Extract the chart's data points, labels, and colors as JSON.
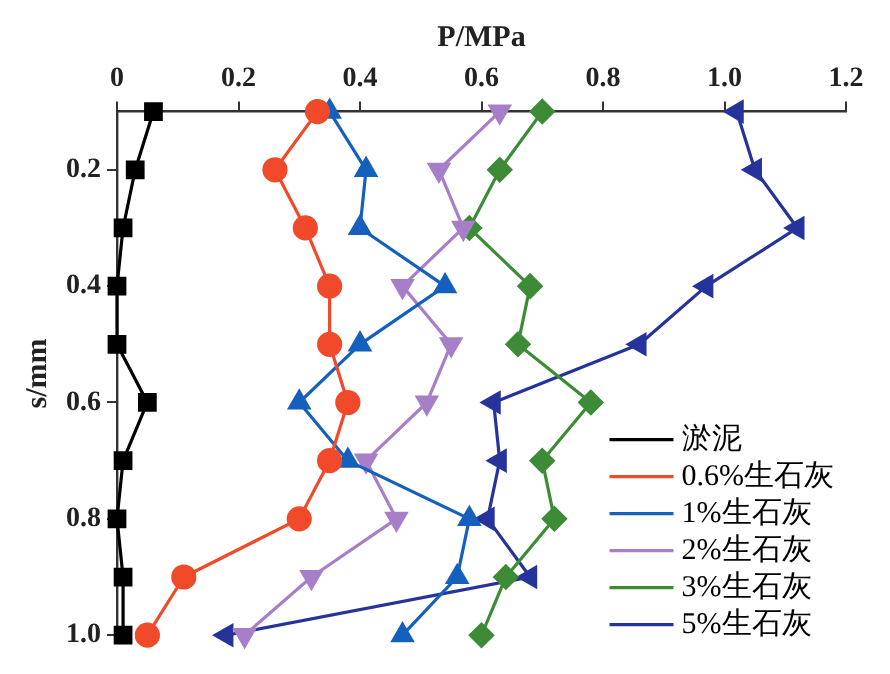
{
  "chart_data": {
    "type": "line",
    "xlabel": "P/MPa",
    "ylabel": "s/mm",
    "xlim": [
      0,
      1.2
    ],
    "xticks": [
      0,
      0.2,
      0.4,
      0.6,
      0.8,
      {
        "value": 1,
        "label": "1.0"
      },
      1.2
    ],
    "ylim": [
      1.0,
      0.1
    ],
    "yticks": [
      0.2,
      0.4,
      0.6,
      0.8,
      {
        "value": 1,
        "label": "1.0"
      }
    ],
    "grid": false,
    "legend": "bottom right",
    "series": [
      {
        "name": "淤泥",
        "color": "#000000",
        "marker": "square",
        "x": [
          0.06,
          0.03,
          0.01,
          0,
          0,
          0.05,
          0.01,
          0,
          0.01,
          0.01
        ],
        "values": [
          0.1,
          0.2,
          0.3,
          0.4,
          0.5,
          0.6,
          0.7,
          0.8,
          0.9,
          1.0
        ]
      },
      {
        "name": "0.6%生石灰",
        "color": "#f04a2a",
        "marker": "circle",
        "x": [
          0.33,
          0.26,
          0.31,
          0.35,
          0.35,
          0.38,
          0.35,
          0.3,
          0.11,
          0.05
        ],
        "values": [
          0.1,
          0.2,
          0.3,
          0.4,
          0.5,
          0.6,
          0.7,
          0.8,
          0.9,
          1.0
        ]
      },
      {
        "name": "1%生石灰",
        "color": "#1560bd",
        "marker": "triangle",
        "x": [
          0.35,
          0.41,
          0.4,
          0.54,
          0.4,
          0.3,
          0.38,
          0.58,
          0.56,
          0.47
        ],
        "values": [
          0.1,
          0.2,
          0.3,
          0.4,
          0.5,
          0.6,
          0.7,
          0.8,
          0.9,
          1.0
        ]
      },
      {
        "name": "2%生石灰",
        "color": "#a77fc8",
        "marker": "triangle",
        "x": [
          0.63,
          0.53,
          0.57,
          0.47,
          0.55,
          0.51,
          0.41,
          0.46,
          0.32,
          0.21
        ],
        "values": [
          0.1,
          0.2,
          0.3,
          0.4,
          0.5,
          0.6,
          0.7,
          0.8,
          0.9,
          1.0
        ]
      },
      {
        "name": "3%生石灰",
        "color": "#3d8b37",
        "marker": "diamond",
        "x": [
          0.7,
          0.63,
          0.58,
          0.68,
          0.66,
          0.78,
          0.7,
          0.72,
          0.64,
          0.6
        ],
        "values": [
          0.1,
          0.2,
          0.3,
          0.4,
          0.5,
          0.6,
          0.7,
          0.8,
          0.9,
          1.0
        ]
      },
      {
        "name": "5%生石灰",
        "color": "#26339a",
        "marker": "triangle",
        "x": [
          1.02,
          1.05,
          1.12,
          0.97,
          0.86,
          0.62,
          0.63,
          0.61,
          0.68,
          0.18
        ],
        "values": [
          0.1,
          0.2,
          0.3,
          0.4,
          0.5,
          0.6,
          0.7,
          0.8,
          0.9,
          1.0
        ]
      }
    ]
  }
}
